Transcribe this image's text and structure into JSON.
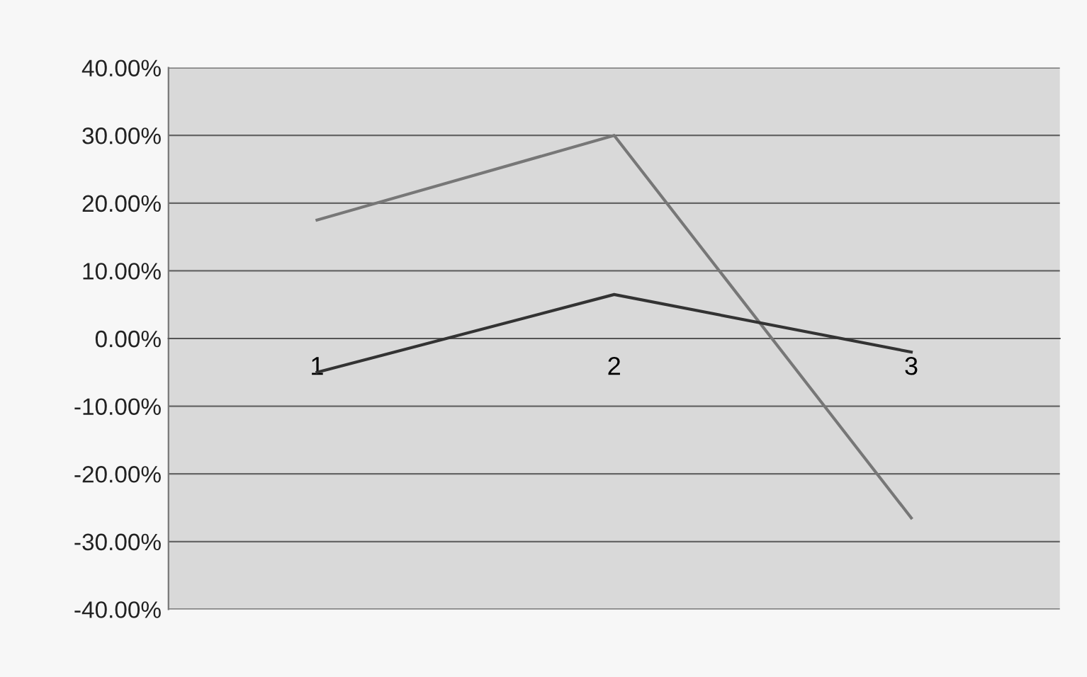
{
  "chart_data": {
    "type": "line",
    "categories": [
      "1",
      "2",
      "3"
    ],
    "series": [
      {
        "color": "#777777",
        "values": [
          17.5,
          30,
          -26.5
        ]
      },
      {
        "color": "#333333",
        "values": [
          -5,
          6.5,
          -2
        ]
      }
    ],
    "ylim": [
      -40,
      40
    ],
    "yticks": [
      {
        "value": 40,
        "label": "40.00%"
      },
      {
        "value": 30,
        "label": "30.00%"
      },
      {
        "value": 20,
        "label": "20.00%"
      },
      {
        "value": 10,
        "label": "10.00%"
      },
      {
        "value": 0,
        "label": "0.00%"
      },
      {
        "value": -10,
        "label": "-10.00%"
      },
      {
        "value": -20,
        "label": "-20.00%"
      },
      {
        "value": -30,
        "label": "-30.00%"
      },
      {
        "value": -40,
        "label": "-40.00%"
      }
    ],
    "grid": "y",
    "marker": "none",
    "line_style": "solid",
    "legend": false
  }
}
